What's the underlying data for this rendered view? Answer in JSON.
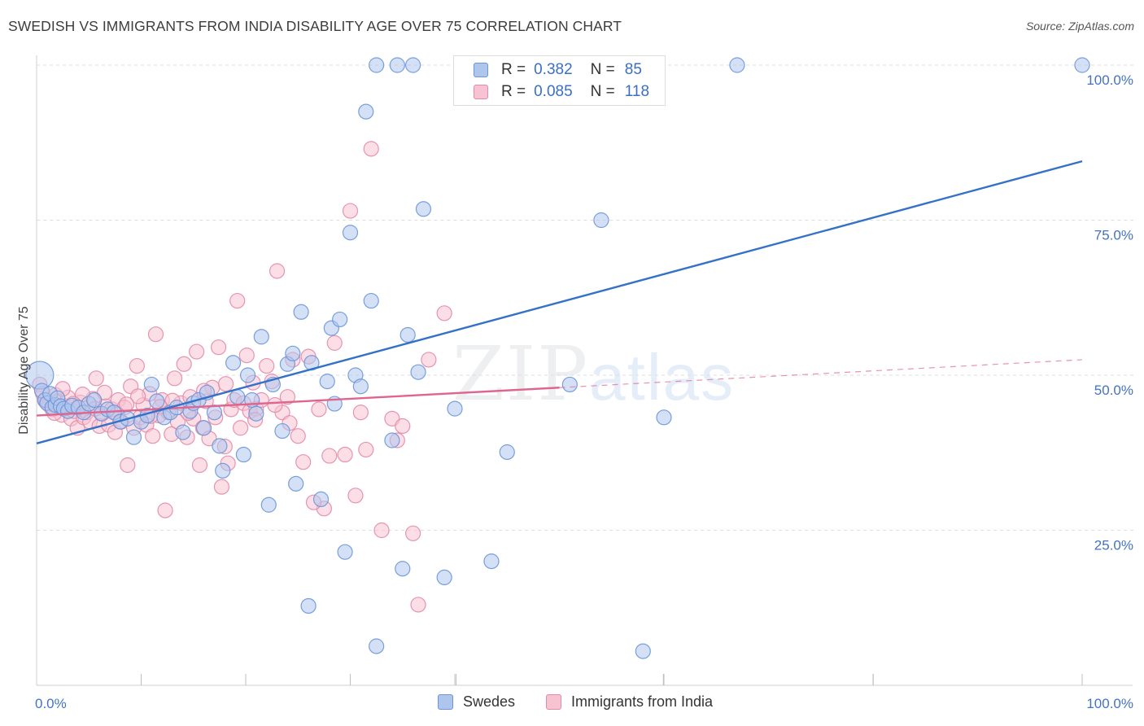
{
  "title": "SWEDISH VS IMMIGRANTS FROM INDIA DISABILITY AGE OVER 75 CORRELATION CHART",
  "source": "Source: ZipAtlas.com",
  "watermark": {
    "zip": "ZIP",
    "atlas": "atlas"
  },
  "colors": {
    "swedes_fill": "#aec6ee",
    "swedes_stroke": "#6b96d8",
    "swedes_line": "#3471c8",
    "india_fill": "#f7c2d1",
    "india_stroke": "#e48aa7",
    "india_line": "#e0658e",
    "grid": "#dedede",
    "tick_text": "#4472c4"
  },
  "legend": {
    "rows": [
      {
        "r_label": "R =",
        "r_value": "0.382",
        "n_label": "N =",
        "n_value": "85"
      },
      {
        "r_label": "R =",
        "r_value": "0.085",
        "n_label": "N =",
        "n_value": "118"
      }
    ]
  },
  "chart_data": {
    "type": "scatter",
    "xlabel": "",
    "ylabel": "Disability Age Over 75",
    "xlim": [
      0,
      100
    ],
    "ylim": [
      0,
      100
    ],
    "x_tick_labels": [
      "0.0%",
      "100.0%"
    ],
    "y_tick_labels": [
      "25.0%",
      "50.0%",
      "75.0%",
      "100.0%"
    ],
    "y_ticks": [
      25,
      50,
      75,
      100
    ],
    "grid": true,
    "legend_position": "bottom",
    "series": [
      {
        "name": "Swedes",
        "trend": {
          "x": [
            0,
            100
          ],
          "y": [
            39.0,
            84.5
          ]
        },
        "points": [
          [
            0.3,
            50.0
          ],
          [
            0.5,
            47.5
          ],
          [
            0.8,
            46.0
          ],
          [
            1.0,
            45.5
          ],
          [
            1.3,
            47.0
          ],
          [
            1.5,
            44.8
          ],
          [
            1.8,
            45.2
          ],
          [
            2.0,
            46.3
          ],
          [
            2.3,
            45.0
          ],
          [
            2.6,
            44.6
          ],
          [
            3.0,
            44.2
          ],
          [
            3.4,
            45.1
          ],
          [
            4.0,
            44.8
          ],
          [
            4.5,
            44.0
          ],
          [
            5.0,
            45.4
          ],
          [
            5.5,
            46.0
          ],
          [
            6.2,
            43.8
          ],
          [
            6.8,
            44.5
          ],
          [
            7.4,
            44.0
          ],
          [
            8.0,
            42.5
          ],
          [
            8.7,
            43.0
          ],
          [
            9.3,
            40.0
          ],
          [
            10.0,
            42.5
          ],
          [
            10.6,
            43.5
          ],
          [
            11.0,
            48.5
          ],
          [
            11.5,
            45.8
          ],
          [
            12.2,
            43.2
          ],
          [
            12.8,
            44.0
          ],
          [
            13.4,
            44.8
          ],
          [
            14.0,
            40.8
          ],
          [
            14.7,
            44.2
          ],
          [
            15.0,
            45.5
          ],
          [
            15.5,
            46.0
          ],
          [
            16.0,
            41.5
          ],
          [
            16.3,
            47.2
          ],
          [
            17.0,
            44.0
          ],
          [
            17.5,
            38.6
          ],
          [
            17.8,
            34.6
          ],
          [
            18.8,
            52.0
          ],
          [
            19.2,
            46.5
          ],
          [
            19.8,
            37.2
          ],
          [
            20.2,
            50.0
          ],
          [
            20.6,
            46.0
          ],
          [
            21.0,
            43.8
          ],
          [
            21.5,
            56.2
          ],
          [
            22.2,
            29.1
          ],
          [
            22.6,
            48.5
          ],
          [
            23.5,
            41.0
          ],
          [
            24.0,
            51.8
          ],
          [
            24.5,
            53.5
          ],
          [
            24.8,
            32.5
          ],
          [
            25.3,
            60.2
          ],
          [
            26.0,
            12.8
          ],
          [
            26.3,
            52.0
          ],
          [
            27.2,
            30.0
          ],
          [
            27.8,
            49.0
          ],
          [
            28.2,
            57.6
          ],
          [
            28.5,
            45.4
          ],
          [
            29.0,
            59.0
          ],
          [
            29.5,
            21.5
          ],
          [
            30.0,
            73.0
          ],
          [
            30.5,
            50.0
          ],
          [
            31.0,
            48.2
          ],
          [
            31.5,
            92.5
          ],
          [
            32.0,
            62.0
          ],
          [
            32.5,
            6.3
          ],
          [
            32.5,
            100.0
          ],
          [
            34.5,
            100.0
          ],
          [
            36.0,
            100.0
          ],
          [
            34.0,
            39.5
          ],
          [
            35.0,
            18.8
          ],
          [
            35.5,
            56.5
          ],
          [
            36.5,
            50.5
          ],
          [
            37.0,
            76.8
          ],
          [
            39.0,
            17.4
          ],
          [
            40.0,
            44.6
          ],
          [
            42.0,
            100.0
          ],
          [
            43.5,
            20.0
          ],
          [
            45.0,
            37.6
          ],
          [
            51.0,
            48.5
          ],
          [
            54.0,
            75.0
          ],
          [
            58.0,
            5.5
          ],
          [
            60.0,
            43.2
          ],
          [
            67.0,
            100.0
          ],
          [
            100.0,
            100.0
          ]
        ]
      },
      {
        "name": "Immigrants from India",
        "trend": {
          "x": [
            0,
            50
          ],
          "y": [
            43.5,
            48.0
          ]
        },
        "trend_dashed": {
          "x": [
            50,
            100
          ],
          "y": [
            48.0,
            52.5
          ]
        },
        "points": [
          [
            0.3,
            48.5
          ],
          [
            0.6,
            47.0
          ],
          [
            0.9,
            46.0
          ],
          [
            1.2,
            45.2
          ],
          [
            1.5,
            44.5
          ],
          [
            1.8,
            46.8
          ],
          [
            2.1,
            45.8
          ],
          [
            2.4,
            43.6
          ],
          [
            2.7,
            45.0
          ],
          [
            3.0,
            46.4
          ],
          [
            3.3,
            43.0
          ],
          [
            3.6,
            44.2
          ],
          [
            3.9,
            41.5
          ],
          [
            4.2,
            45.6
          ],
          [
            4.5,
            43.2
          ],
          [
            4.8,
            44.0
          ],
          [
            5.1,
            42.5
          ],
          [
            5.4,
            46.2
          ],
          [
            5.7,
            49.5
          ],
          [
            6.0,
            41.8
          ],
          [
            6.3,
            43.8
          ],
          [
            6.6,
            45.0
          ],
          [
            6.9,
            42.0
          ],
          [
            7.2,
            44.5
          ],
          [
            7.5,
            40.8
          ],
          [
            7.8,
            46.0
          ],
          [
            8.1,
            42.5
          ],
          [
            8.4,
            44.8
          ],
          [
            8.7,
            35.5
          ],
          [
            9.0,
            48.2
          ],
          [
            9.3,
            41.5
          ],
          [
            9.6,
            51.5
          ],
          [
            9.9,
            43.2
          ],
          [
            10.2,
            45.2
          ],
          [
            10.5,
            42.0
          ],
          [
            10.8,
            47.0
          ],
          [
            11.1,
            40.2
          ],
          [
            11.4,
            56.6
          ],
          [
            11.7,
            43.5
          ],
          [
            12.0,
            46.0
          ],
          [
            12.3,
            28.2
          ],
          [
            12.6,
            44.0
          ],
          [
            12.9,
            40.5
          ],
          [
            13.2,
            49.5
          ],
          [
            13.5,
            42.5
          ],
          [
            13.8,
            45.5
          ],
          [
            14.1,
            51.8
          ],
          [
            14.4,
            40.0
          ],
          [
            14.7,
            46.5
          ],
          [
            15.0,
            43.0
          ],
          [
            15.3,
            53.8
          ],
          [
            15.6,
            35.5
          ],
          [
            15.9,
            41.5
          ],
          [
            16.2,
            45.8
          ],
          [
            16.5,
            39.8
          ],
          [
            16.8,
            48.0
          ],
          [
            17.1,
            43.2
          ],
          [
            17.4,
            54.5
          ],
          [
            17.7,
            32.0
          ],
          [
            18.0,
            38.5
          ],
          [
            18.3,
            35.8
          ],
          [
            18.6,
            44.5
          ],
          [
            18.9,
            46.0
          ],
          [
            19.2,
            62.0
          ],
          [
            19.5,
            41.5
          ],
          [
            19.8,
            45.5
          ],
          [
            20.1,
            53.2
          ],
          [
            20.4,
            44.2
          ],
          [
            20.7,
            48.8
          ],
          [
            21.0,
            44.6
          ],
          [
            21.5,
            46.0
          ],
          [
            22.0,
            51.5
          ],
          [
            22.5,
            49.0
          ],
          [
            23.0,
            66.8
          ],
          [
            23.5,
            44.0
          ],
          [
            24.0,
            46.5
          ],
          [
            24.5,
            52.5
          ],
          [
            25.0,
            40.2
          ],
          [
            25.5,
            36.0
          ],
          [
            26.0,
            53.0
          ],
          [
            27.0,
            44.5
          ],
          [
            27.5,
            28.5
          ],
          [
            28.0,
            37.0
          ],
          [
            28.5,
            55.2
          ],
          [
            29.5,
            37.2
          ],
          [
            30.0,
            76.5
          ],
          [
            30.5,
            30.6
          ],
          [
            31.0,
            44.0
          ],
          [
            31.5,
            38.0
          ],
          [
            32.0,
            86.5
          ],
          [
            33.0,
            25.0
          ],
          [
            34.0,
            43.0
          ],
          [
            34.5,
            39.5
          ],
          [
            35.0,
            41.8
          ],
          [
            36.0,
            24.5
          ],
          [
            36.5,
            13.0
          ],
          [
            37.5,
            52.5
          ],
          [
            39.0,
            60.0
          ],
          [
            26.5,
            29.5
          ],
          [
            22.8,
            45.2
          ],
          [
            18.1,
            48.6
          ],
          [
            16.0,
            47.5
          ],
          [
            14.5,
            43.9
          ],
          [
            13.0,
            45.9
          ],
          [
            11.8,
            44.9
          ],
          [
            10.9,
            43.4
          ],
          [
            9.7,
            46.6
          ],
          [
            8.6,
            45.3
          ],
          [
            7.7,
            43.7
          ],
          [
            6.5,
            47.2
          ],
          [
            5.6,
            44.6
          ],
          [
            4.4,
            46.9
          ],
          [
            3.5,
            45.4
          ],
          [
            2.5,
            47.8
          ],
          [
            1.7,
            43.9
          ],
          [
            0.8,
            45.9
          ],
          [
            20.9,
            42.8
          ],
          [
            24.2,
            42.3
          ]
        ]
      }
    ]
  }
}
